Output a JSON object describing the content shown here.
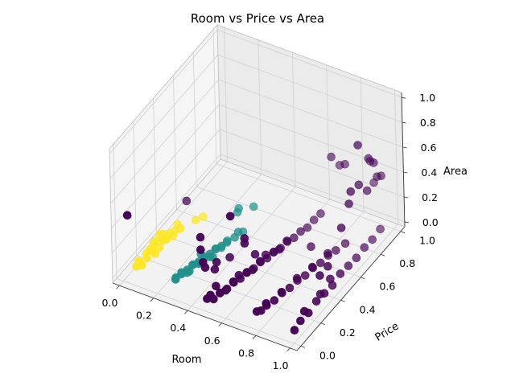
{
  "chart_data": {
    "type": "scatter",
    "title": "Room vs Price vs Area",
    "xlabel": "Room",
    "ylabel": "Price",
    "zlabel": "Area",
    "xlim": [
      0,
      1
    ],
    "ylim": [
      0,
      1
    ],
    "zlim": [
      0,
      1
    ],
    "xticks": [
      "0.0",
      "0.2",
      "0.4",
      "0.6",
      "0.8",
      "1.0"
    ],
    "yticks": [
      "0.0",
      "0.2",
      "0.4",
      "0.6",
      "0.8",
      "1.0"
    ],
    "zticks": [
      "0.0",
      "0.2",
      "0.4",
      "0.6",
      "0.8",
      "1.0"
    ],
    "grid": true,
    "colors": {
      "cluster_0": "#440154",
      "cluster_1": "#21918c",
      "cluster_2": "#fde725"
    },
    "series": [
      {
        "color_key": "cluster_2",
        "points": [
          [
            0.02,
            0.12,
            0.02
          ],
          [
            0.03,
            0.18,
            0.03
          ],
          [
            0.04,
            0.22,
            0.02
          ],
          [
            0.02,
            0.28,
            0.03
          ],
          [
            0.04,
            0.32,
            0.02
          ],
          [
            0.03,
            0.25,
            0.04
          ],
          [
            0.05,
            0.15,
            0.03
          ],
          [
            0.06,
            0.3,
            0.04
          ],
          [
            0.03,
            0.35,
            0.03
          ],
          [
            0.05,
            0.38,
            0.02
          ],
          [
            0.07,
            0.4,
            0.03
          ],
          [
            0.09,
            0.42,
            0.04
          ],
          [
            0.04,
            0.2,
            0.05
          ],
          [
            0.06,
            0.26,
            0.02
          ],
          [
            0.02,
            0.33,
            0.04
          ],
          [
            0.08,
            0.36,
            0.03
          ],
          [
            0.05,
            0.1,
            0.02
          ],
          [
            0.07,
            0.2,
            0.03
          ],
          [
            0.03,
            0.08,
            0.02
          ],
          [
            0.06,
            0.44,
            0.04
          ],
          [
            0.12,
            0.52,
            0.03
          ],
          [
            0.14,
            0.56,
            0.03
          ],
          [
            0.08,
            0.3,
            0.06
          ]
        ]
      },
      {
        "color_key": "cluster_1",
        "points": [
          [
            0.25,
            0.1,
            0.02
          ],
          [
            0.26,
            0.14,
            0.03
          ],
          [
            0.27,
            0.18,
            0.02
          ],
          [
            0.28,
            0.22,
            0.03
          ],
          [
            0.29,
            0.26,
            0.02
          ],
          [
            0.3,
            0.3,
            0.03
          ],
          [
            0.31,
            0.34,
            0.02
          ],
          [
            0.32,
            0.38,
            0.03
          ],
          [
            0.33,
            0.42,
            0.02
          ],
          [
            0.34,
            0.46,
            0.03
          ],
          [
            0.27,
            0.12,
            0.04
          ],
          [
            0.29,
            0.2,
            0.05
          ],
          [
            0.31,
            0.28,
            0.04
          ],
          [
            0.33,
            0.36,
            0.05
          ],
          [
            0.35,
            0.44,
            0.04
          ],
          [
            0.26,
            0.08,
            0.03
          ],
          [
            0.28,
            0.16,
            0.02
          ],
          [
            0.3,
            0.24,
            0.03
          ],
          [
            0.32,
            0.32,
            0.02
          ],
          [
            0.34,
            0.4,
            0.03
          ],
          [
            0.36,
            0.5,
            0.03
          ],
          [
            0.38,
            0.55,
            0.04
          ],
          [
            0.37,
            0.52,
            0.06
          ],
          [
            0.3,
            0.15,
            0.05
          ],
          [
            0.28,
            0.3,
            0.04
          ],
          [
            0.32,
            0.22,
            0.06
          ],
          [
            0.35,
            0.3,
            0.05
          ],
          [
            0.34,
            0.58,
            0.18
          ],
          [
            0.32,
            0.6,
            0.12
          ],
          [
            0.38,
            0.66,
            0.14
          ]
        ]
      },
      {
        "color_key": "cluster_0",
        "points": [
          [
            0.5,
            0.05,
            0.02
          ],
          [
            0.51,
            0.1,
            0.03
          ],
          [
            0.52,
            0.15,
            0.02
          ],
          [
            0.53,
            0.2,
            0.03
          ],
          [
            0.54,
            0.25,
            0.02
          ],
          [
            0.55,
            0.3,
            0.03
          ],
          [
            0.56,
            0.35,
            0.02
          ],
          [
            0.57,
            0.4,
            0.03
          ],
          [
            0.58,
            0.45,
            0.02
          ],
          [
            0.59,
            0.5,
            0.03
          ],
          [
            0.6,
            0.55,
            0.02
          ],
          [
            0.61,
            0.6,
            0.03
          ],
          [
            0.62,
            0.65,
            0.02
          ],
          [
            0.63,
            0.7,
            0.03
          ],
          [
            0.64,
            0.75,
            0.02
          ],
          [
            0.52,
            0.08,
            0.05
          ],
          [
            0.54,
            0.18,
            0.06
          ],
          [
            0.56,
            0.28,
            0.05
          ],
          [
            0.58,
            0.38,
            0.06
          ],
          [
            0.6,
            0.48,
            0.05
          ],
          [
            0.62,
            0.58,
            0.06
          ],
          [
            0.53,
            0.12,
            0.04
          ],
          [
            0.57,
            0.32,
            0.04
          ],
          [
            0.61,
            0.52,
            0.04
          ],
          [
            0.65,
            0.8,
            0.04
          ],
          [
            0.66,
            0.85,
            0.05
          ],
          [
            0.5,
            0.02,
            0.08
          ],
          [
            0.51,
            0.06,
            0.12
          ],
          [
            0.48,
            0.02,
            0.04
          ],
          [
            0.55,
            0.22,
            0.08
          ],
          [
            0.59,
            0.42,
            0.08
          ],
          [
            0.76,
            0.08,
            0.03
          ],
          [
            0.77,
            0.12,
            0.04
          ],
          [
            0.78,
            0.18,
            0.03
          ],
          [
            0.79,
            0.24,
            0.04
          ],
          [
            0.8,
            0.3,
            0.03
          ],
          [
            0.81,
            0.36,
            0.04
          ],
          [
            0.82,
            0.42,
            0.03
          ],
          [
            0.83,
            0.48,
            0.04
          ],
          [
            0.84,
            0.54,
            0.03
          ],
          [
            0.85,
            0.6,
            0.04
          ],
          [
            0.86,
            0.66,
            0.03
          ],
          [
            0.78,
            0.1,
            0.08
          ],
          [
            0.8,
            0.22,
            0.07
          ],
          [
            0.82,
            0.34,
            0.08
          ],
          [
            0.84,
            0.46,
            0.07
          ],
          [
            0.86,
            0.58,
            0.08
          ],
          [
            0.88,
            0.72,
            0.04
          ],
          [
            0.76,
            0.04,
            0.06
          ],
          [
            0.98,
            0.04,
            0.02
          ],
          [
            0.98,
            0.1,
            0.04
          ],
          [
            0.98,
            0.18,
            0.03
          ],
          [
            0.98,
            0.26,
            0.05
          ],
          [
            0.98,
            0.34,
            0.04
          ],
          [
            0.98,
            0.42,
            0.03
          ],
          [
            0.98,
            0.5,
            0.05
          ],
          [
            0.98,
            0.58,
            0.04
          ],
          [
            0.98,
            0.66,
            0.03
          ],
          [
            0.98,
            0.74,
            0.04
          ],
          [
            0.98,
            0.82,
            0.03
          ],
          [
            0.98,
            0.9,
            0.04
          ],
          [
            0.98,
            0.14,
            0.08
          ],
          [
            0.98,
            0.3,
            0.07
          ],
          [
            0.02,
            0.02,
            0.48
          ],
          [
            0.02,
            0.6,
            0.06
          ],
          [
            0.4,
            0.1,
            0.42
          ],
          [
            0.4,
            0.1,
            0.32
          ],
          [
            0.4,
            0.12,
            0.2
          ],
          [
            0.4,
            0.14,
            0.14
          ],
          [
            0.42,
            0.2,
            0.08
          ],
          [
            0.42,
            0.22,
            0.12
          ],
          [
            0.45,
            0.3,
            0.1
          ],
          [
            0.58,
            0.1,
            0.68
          ],
          [
            0.6,
            0.2,
            0.42
          ],
          [
            0.6,
            0.2,
            0.38
          ],
          [
            0.6,
            0.3,
            0.2
          ],
          [
            0.98,
            0.7,
            0.9
          ],
          [
            0.98,
            0.8,
            0.7
          ],
          [
            0.98,
            0.85,
            0.62
          ],
          [
            0.98,
            0.78,
            0.46
          ],
          [
            0.98,
            0.88,
            0.48
          ],
          [
            0.98,
            0.92,
            0.45
          ],
          [
            0.98,
            0.7,
            0.58
          ],
          [
            0.98,
            0.6,
            0.52
          ],
          [
            0.98,
            0.52,
            0.4
          ],
          [
            0.98,
            0.62,
            0.6
          ],
          [
            0.7,
            0.9,
            0.48
          ],
          [
            0.7,
            0.98,
            0.34
          ],
          [
            0.75,
            0.95,
            0.4
          ],
          [
            0.9,
            0.95,
            0.5
          ],
          [
            0.9,
            0.98,
            0.3
          ],
          [
            0.98,
            0.3,
            0.22
          ],
          [
            0.98,
            0.38,
            0.22
          ],
          [
            0.98,
            0.4,
            0.1
          ],
          [
            0.75,
            0.6,
            0.06
          ]
        ]
      }
    ]
  }
}
